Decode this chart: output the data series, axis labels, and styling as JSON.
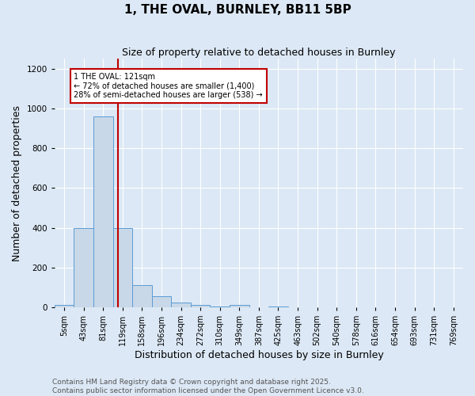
{
  "title": "1, THE OVAL, BURNLEY, BB11 5BP",
  "subtitle": "Size of property relative to detached houses in Burnley",
  "xlabel": "Distribution of detached houses by size in Burnley",
  "ylabel": "Number of detached properties",
  "bar_color": "#c8d8e8",
  "bar_edge_color": "#5b9bd5",
  "bin_labels": [
    "5sqm",
    "43sqm",
    "81sqm",
    "119sqm",
    "158sqm",
    "196sqm",
    "234sqm",
    "272sqm",
    "310sqm",
    "349sqm",
    "387sqm",
    "425sqm",
    "463sqm",
    "502sqm",
    "540sqm",
    "578sqm",
    "616sqm",
    "654sqm",
    "693sqm",
    "731sqm",
    "769sqm"
  ],
  "bar_heights": [
    10,
    400,
    960,
    400,
    110,
    55,
    25,
    10,
    5,
    10,
    0,
    5,
    0,
    0,
    0,
    0,
    0,
    0,
    0,
    0,
    0
  ],
  "ylim": [
    0,
    1250
  ],
  "yticks": [
    0,
    200,
    400,
    600,
    800,
    1000,
    1200
  ],
  "property_bin_index": 2.75,
  "vline_color": "#c00000",
  "annotation_text": "1 THE OVAL: 121sqm\n← 72% of detached houses are smaller (1,400)\n28% of semi-detached houses are larger (538) →",
  "annotation_box_color": "#ffffff",
  "annotation_edge_color": "#c00000",
  "footer_line1": "Contains HM Land Registry data © Crown copyright and database right 2025.",
  "footer_line2": "Contains public sector information licensed under the Open Government Licence v3.0.",
  "background_color": "#dce8f5",
  "axes_background": "#dce8f5",
  "grid_color": "#ffffff",
  "title_fontsize": 11,
  "subtitle_fontsize": 9,
  "tick_fontsize": 7,
  "label_fontsize": 9,
  "footer_fontsize": 6.5
}
